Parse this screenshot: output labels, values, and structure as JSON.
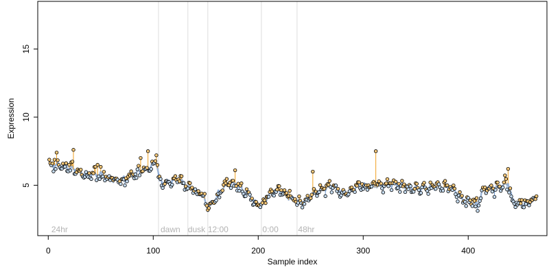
{
  "chart_data": {
    "type": "scatter",
    "title": "",
    "xlabel": "Sample index",
    "ylabel": "Expression",
    "xlim": [
      -10,
      475
    ],
    "ylim": [
      1.3,
      18.5
    ],
    "x_ticks": [
      0,
      100,
      200,
      300,
      400
    ],
    "y_ticks": [
      5,
      10,
      15
    ],
    "grid": false,
    "colors": {
      "point_fill_above": "#f5c87a",
      "point_fill_below": "#c6dcf0",
      "point_stroke": "#000000",
      "segment_above": "#f0a020",
      "segment_below": "#6f9bd0",
      "fit_line": "#9bb4d6",
      "phase_line": "#dddddd",
      "phase_text": "#b3b3b3"
    },
    "phase_boundaries": [
      105,
      133,
      152,
      203,
      237
    ],
    "phase_labels": [
      {
        "x": 3,
        "text": "24hr"
      },
      {
        "x": 107,
        "text": "dawn"
      },
      {
        "x": 133,
        "text": "dusk"
      },
      {
        "x": 152,
        "text": "12:00"
      },
      {
        "x": 204,
        "text": "0:00"
      },
      {
        "x": 238,
        "text": "48hr"
      }
    ],
    "fit_knots": [
      [
        1,
        6.5
      ],
      [
        10,
        6.5
      ],
      [
        24,
        6.2
      ],
      [
        30,
        5.9
      ],
      [
        40,
        5.8
      ],
      [
        50,
        5.8
      ],
      [
        60,
        5.4
      ],
      [
        70,
        5.4
      ],
      [
        78,
        5.6
      ],
      [
        85,
        6.0
      ],
      [
        95,
        6.2
      ],
      [
        103,
        6.8
      ],
      [
        106,
        5.3
      ],
      [
        112,
        5.2
      ],
      [
        120,
        5.4
      ],
      [
        127,
        5.3
      ],
      [
        133,
        4.9
      ],
      [
        140,
        4.6
      ],
      [
        147,
        4.3
      ],
      [
        152,
        3.3
      ],
      [
        157,
        3.7
      ],
      [
        162,
        4.4
      ],
      [
        168,
        4.9
      ],
      [
        174,
        5.2
      ],
      [
        180,
        5.0
      ],
      [
        186,
        4.6
      ],
      [
        192,
        4.3
      ],
      [
        198,
        3.6
      ],
      [
        203,
        3.5
      ],
      [
        210,
        4.2
      ],
      [
        216,
        4.6
      ],
      [
        222,
        4.6
      ],
      [
        228,
        4.2
      ],
      [
        234,
        3.9
      ],
      [
        240,
        3.7
      ],
      [
        246,
        3.9
      ],
      [
        252,
        4.3
      ],
      [
        258,
        4.6
      ],
      [
        264,
        4.8
      ],
      [
        270,
        4.9
      ],
      [
        276,
        4.7
      ],
      [
        282,
        4.4
      ],
      [
        288,
        4.5
      ],
      [
        294,
        4.9
      ],
      [
        300,
        5.0
      ],
      [
        306,
        4.9
      ],
      [
        312,
        5.0
      ],
      [
        320,
        5.0
      ],
      [
        330,
        5.1
      ],
      [
        340,
        4.9
      ],
      [
        350,
        4.8
      ],
      [
        360,
        4.8
      ],
      [
        370,
        4.9
      ],
      [
        380,
        4.8
      ],
      [
        385,
        4.8
      ],
      [
        390,
        4.4
      ],
      [
        395,
        3.9
      ],
      [
        400,
        3.9
      ],
      [
        405,
        3.6
      ],
      [
        410,
        3.7
      ],
      [
        414,
        4.7
      ],
      [
        420,
        4.7
      ],
      [
        428,
        4.8
      ],
      [
        434,
        5.0
      ],
      [
        438,
        5.2
      ],
      [
        442,
        3.9
      ],
      [
        450,
        3.6
      ],
      [
        458,
        3.7
      ],
      [
        464,
        4.0
      ]
    ],
    "outliers": [
      [
        8,
        7.4
      ],
      [
        24,
        7.6
      ],
      [
        47,
        6.5
      ],
      [
        88,
        7.0
      ],
      [
        95,
        7.5
      ],
      [
        103,
        7.2
      ],
      [
        178,
        6.1
      ],
      [
        252,
        6.0
      ],
      [
        312,
        7.5
      ],
      [
        438,
        6.2
      ]
    ],
    "seed": 7,
    "n_points": 465
  }
}
